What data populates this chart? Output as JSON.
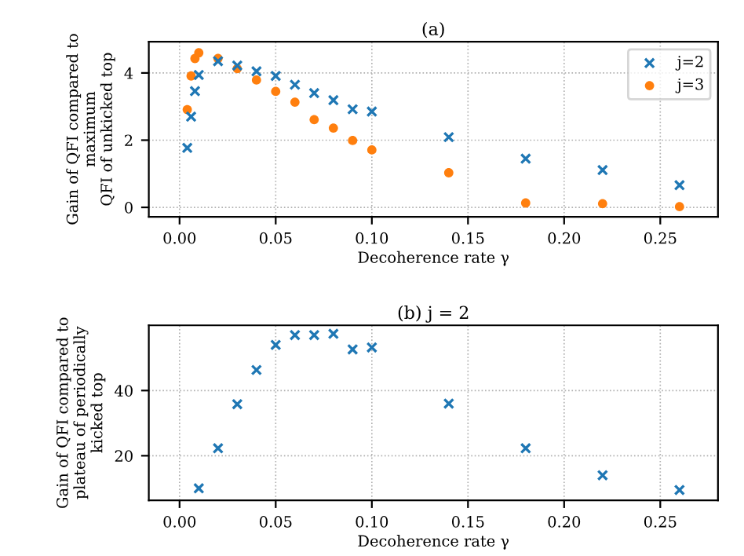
{
  "chart_data": [
    {
      "type": "scatter",
      "title": "(a)",
      "xlabel": "Decoherence rate γ",
      "ylabel": "Gain of QFI compared to\nmaximum\nQFI of unkicked top",
      "xlim": [
        -0.016,
        0.28
      ],
      "ylim": [
        -0.28,
        4.93
      ],
      "xticks": [
        {
          "value": 0,
          "label": "0.00"
        },
        {
          "value": 0.05,
          "label": "0.05"
        },
        {
          "value": 0.1,
          "label": "0.10"
        },
        {
          "value": 0.15,
          "label": "0.15"
        },
        {
          "value": 0.2,
          "label": "0.20"
        },
        {
          "value": 0.25,
          "label": "0.25"
        }
      ],
      "yticks": [
        0,
        2,
        4
      ],
      "grid": true,
      "legend": "top right",
      "series": [
        {
          "name": "j=2",
          "color": "#1f77b4",
          "marker": "cross",
          "x": [
            0.004,
            0.006,
            0.008,
            0.01,
            0.02,
            0.03,
            0.04,
            0.05,
            0.06,
            0.07,
            0.08,
            0.09,
            0.1,
            0.14,
            0.18,
            0.22,
            0.26
          ],
          "values": [
            1.77,
            2.7,
            3.46,
            3.94,
            4.35,
            4.22,
            4.05,
            3.91,
            3.65,
            3.4,
            3.19,
            2.92,
            2.85,
            2.09,
            1.45,
            1.11,
            0.66
          ]
        },
        {
          "name": "j=3",
          "color": "#ff7f0e",
          "marker": "circle",
          "x": [
            0.004,
            0.006,
            0.008,
            0.01,
            0.02,
            0.03,
            0.04,
            0.05,
            0.06,
            0.07,
            0.08,
            0.09,
            0.1,
            0.14,
            0.18,
            0.22,
            0.26
          ],
          "values": [
            2.91,
            3.91,
            4.43,
            4.6,
            4.43,
            4.13,
            3.79,
            3.45,
            3.13,
            2.61,
            2.36,
            1.99,
            1.71,
            1.03,
            0.13,
            0.11,
            0.02
          ]
        }
      ]
    },
    {
      "type": "scatter",
      "title": "(b) j = 2",
      "xlabel": "Decoherence rate γ",
      "ylabel": "Gain of QFI compared to\nplateau of periodically\nkicked top",
      "xlim": [
        -0.016,
        0.28
      ],
      "ylim": [
        6.3,
        60
      ],
      "xticks": [
        {
          "value": 0,
          "label": "0.00"
        },
        {
          "value": 0.05,
          "label": "0.05"
        },
        {
          "value": 0.1,
          "label": "0.10"
        },
        {
          "value": 0.15,
          "label": "0.15"
        },
        {
          "value": 0.2,
          "label": "0.20"
        },
        {
          "value": 0.25,
          "label": "0.25"
        }
      ],
      "yticks": [
        20,
        40
      ],
      "grid": true,
      "series": [
        {
          "color": "#1f77b4",
          "marker": "cross",
          "x": [
            0.01,
            0.02,
            0.03,
            0.04,
            0.05,
            0.06,
            0.07,
            0.08,
            0.09,
            0.1,
            0.14,
            0.18,
            0.22,
            0.26
          ],
          "values": [
            10,
            22.3,
            35.8,
            46.3,
            54,
            57,
            57,
            57.4,
            52.6,
            53.2,
            36,
            22.3,
            14,
            9.5
          ]
        }
      ]
    }
  ]
}
